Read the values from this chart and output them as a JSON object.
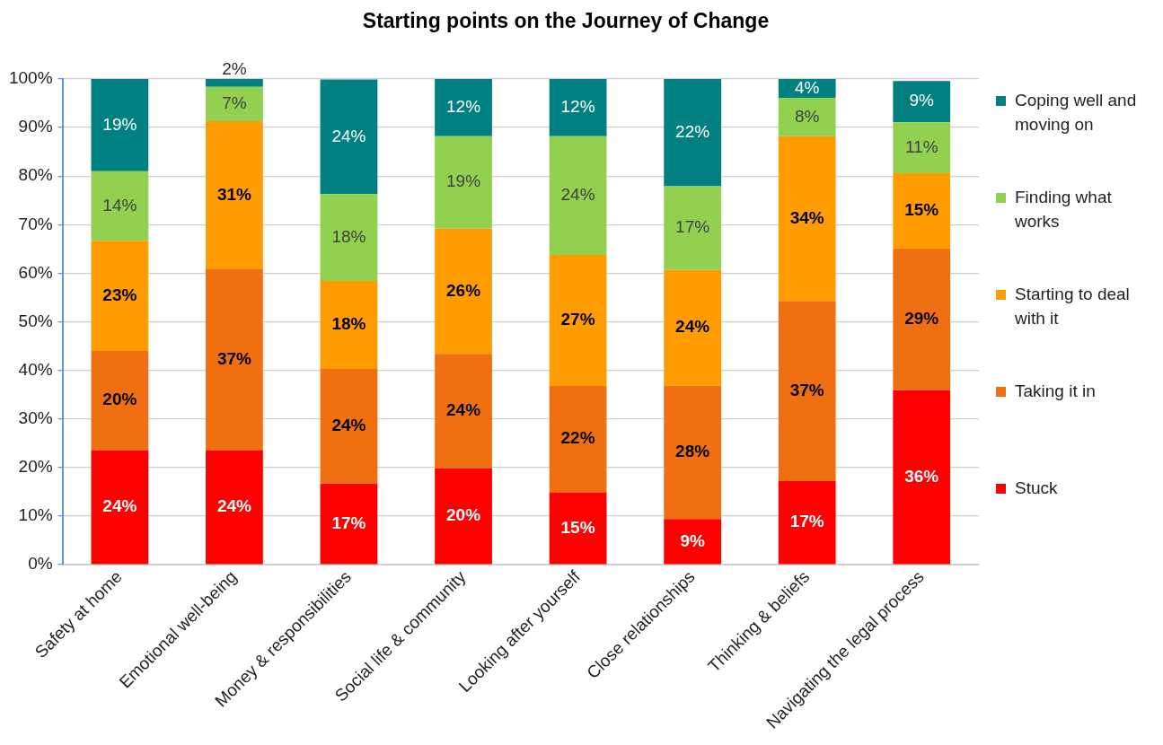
{
  "chart_data": {
    "type": "bar",
    "title": "Starting points on the Journey of Change",
    "categories": [
      "Safety at home",
      "Emotional well-being",
      "Money & responsibilities",
      "Social life & community",
      "Looking after yourself",
      "Close relationships",
      "Thinking & beliefs",
      "Navigating the legal process"
    ],
    "stacked": true,
    "series": [
      {
        "name": "Stuck",
        "color": "#ff0000",
        "values": [
          23.6,
          23.6,
          16.7,
          19.8,
          14.9,
          9.4,
          17.2,
          35.9
        ],
        "value_labels": [
          "24%",
          "24%",
          "17%",
          "20%",
          "15%",
          "9%",
          "17%",
          "36%"
        ]
      },
      {
        "name": "Taking it in",
        "color": "#f07011",
        "values": [
          20.4,
          37.2,
          23.6,
          23.6,
          21.9,
          27.5,
          37.1,
          29.2
        ],
        "value_labels": [
          "20%",
          "37%",
          "24%",
          "24%",
          "22%",
          "28%",
          "37%",
          "29%"
        ]
      },
      {
        "name": "Starting to deal with it",
        "color": "#ff9c00",
        "values": [
          22.7,
          30.5,
          18.1,
          25.8,
          27.0,
          23.8,
          33.9,
          15.5
        ],
        "value_labels": [
          "23%",
          "31%",
          "18%",
          "26%",
          "27%",
          "24%",
          "34%",
          "15%"
        ]
      },
      {
        "name": "Finding what works",
        "color": "#92d050",
        "values": [
          14.3,
          7.1,
          17.9,
          19.0,
          24.4,
          17.2,
          7.9,
          10.5
        ],
        "value_labels": [
          "14%",
          "7%",
          "18%",
          "19%",
          "24%",
          "17%",
          "8%",
          "11%"
        ]
      },
      {
        "name": "Coping well and moving on",
        "color": "#008080",
        "values": [
          19.0,
          1.6,
          23.6,
          11.8,
          11.8,
          22.1,
          3.9,
          8.5
        ],
        "value_labels": [
          "19%",
          "2%",
          "24%",
          "12%",
          "12%",
          "22%",
          "4%",
          "9%"
        ]
      }
    ],
    "ylim": [
      0,
      100
    ],
    "yticks": [
      {
        "value": 0,
        "label": "0%"
      },
      {
        "value": 10,
        "label": "10%"
      },
      {
        "value": 20,
        "label": "20%"
      },
      {
        "value": 30,
        "label": "30%"
      },
      {
        "value": 40,
        "label": "40%"
      },
      {
        "value": 50,
        "label": "50%"
      },
      {
        "value": 60,
        "label": "60%"
      },
      {
        "value": 70,
        "label": "70%"
      },
      {
        "value": 80,
        "label": "80%"
      },
      {
        "value": 90,
        "label": "90%"
      },
      {
        "value": 100,
        "label": "100%"
      }
    ],
    "grid": "y",
    "legend": "right"
  }
}
